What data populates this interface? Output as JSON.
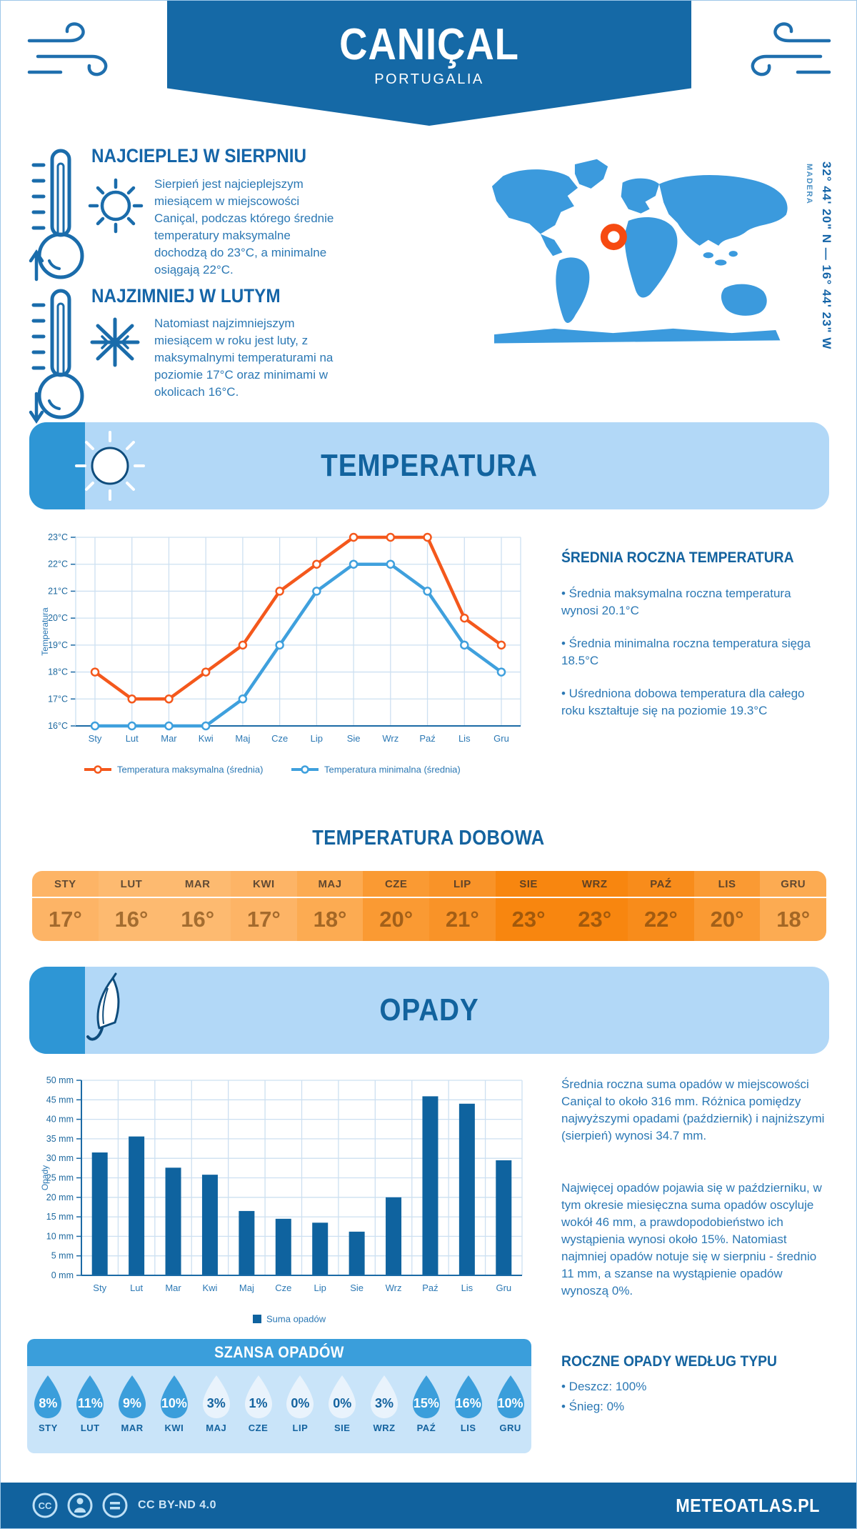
{
  "header": {
    "title": "CANIÇAL",
    "subtitle": "PORTUGALIA"
  },
  "location": {
    "coordinates": "32° 44' 20\" N — 16° 44' 23\" W",
    "region": "MADERA",
    "map_color": "#3b9add",
    "marker_color": "#f64a11"
  },
  "highlights": [
    {
      "title": "NAJCIEPLEJ W SIERPNIU",
      "text": "Sierpień jest najcieplejszym miesiącem w miejscowości Caniçal, podczas którego średnie temperatury maksymalne dochodzą do 23°C, a minimalne osiągają 22°C."
    },
    {
      "title": "NAJZIMNIEJ W LUTYM",
      "text": "Natomiast najzimniejszym miesiącem w roku jest luty, z maksymalnymi temperaturami na poziomie 17°C oraz minimami w okolicach 16°C."
    }
  ],
  "temperature_section": {
    "banner": "TEMPERATURA",
    "stats_heading": "ŚREDNIA ROCZNA TEMPERATURA",
    "stats": [
      "• Średnia maksymalna roczna temperatura wynosi 20.1°C",
      "• Średnia minimalna roczna temperatura sięga 18.5°C",
      "• Uśredniona dobowa temperatura dla całego roku kształtuje się na poziomie 19.3°C"
    ],
    "daily_heading": "TEMPERATURA DOBOWA"
  },
  "chart_data": [
    {
      "type": "line",
      "categories": [
        "Sty",
        "Lut",
        "Mar",
        "Kwi",
        "Maj",
        "Cze",
        "Lip",
        "Sie",
        "Wrz",
        "Paź",
        "Lis",
        "Gru"
      ],
      "series": [
        {
          "name": "Temperatura maksymalna (średnia)",
          "color": "#f4581c",
          "values": [
            18,
            17,
            17,
            18,
            19,
            21,
            22,
            23,
            23,
            23,
            20,
            19
          ]
        },
        {
          "name": "Temperatura minimalna (średnia)",
          "color": "#3fa0dd",
          "values": [
            16,
            16,
            16,
            16,
            17,
            19,
            21,
            22,
            22,
            21,
            19,
            18
          ]
        }
      ],
      "ylabel": "Temperatura",
      "ylim": [
        16,
        23
      ],
      "ytick_step": 1,
      "ytick_suffix": "°C",
      "grid": true,
      "legend_position": "bottom"
    },
    {
      "type": "bar",
      "categories": [
        "Sty",
        "Lut",
        "Mar",
        "Kwi",
        "Maj",
        "Cze",
        "Lip",
        "Sie",
        "Wrz",
        "Paź",
        "Lis",
        "Gru"
      ],
      "values": [
        31.5,
        35.6,
        27.6,
        25.8,
        16.5,
        14.5,
        13.5,
        11.2,
        20,
        45.9,
        44,
        29.5
      ],
      "bar_color": "#0f639f",
      "ylabel": "Opady",
      "ylim": [
        0,
        50
      ],
      "ytick_step": 5,
      "ytick_suffix": " mm",
      "legend": "Suma opadów",
      "grid": true,
      "legend_position": "bottom"
    }
  ],
  "daily_table": {
    "months": [
      "STY",
      "LUT",
      "MAR",
      "KWI",
      "MAJ",
      "CZE",
      "LIP",
      "SIE",
      "WRZ",
      "PAŹ",
      "LIS",
      "GRU"
    ],
    "values": [
      "17°",
      "16°",
      "16°",
      "17°",
      "18°",
      "20°",
      "21°",
      "23°",
      "23°",
      "22°",
      "20°",
      "18°"
    ],
    "cell_colors": [
      "#fdb466",
      "#fdba70",
      "#fdba70",
      "#fdb466",
      "#fcab52",
      "#fa9a33",
      "#f99328",
      "#f8860f",
      "#f8860f",
      "#f88c1b",
      "#fa9a33",
      "#fcab52"
    ]
  },
  "precipitation_section": {
    "banner": "OPADY",
    "paragraphs": [
      "Średnia roczna suma opadów w miejscowości Caniçal to około 316 mm. Różnica pomiędzy najwyższymi opadami (październik) i najniższymi (sierpień) wynosi 34.7 mm.",
      "Najwięcej opadów pojawia się w październiku, w tym okresie miesięczna suma opadów oscyluje wokół 46 mm, a prawdopodobieństwo ich wystąpienia wynosi około 15%. Natomiast najmniej opadów notuje się w sierpniu - średnio 11 mm, a szanse na wystąpienie opadów wynoszą 0%."
    ],
    "type_heading": "ROCZNE OPADY WEDŁUG TYPU",
    "type_bullets": [
      "• Deszcz: 100%",
      "• Śnieg: 0%"
    ]
  },
  "chance_section": {
    "heading": "SZANSA OPADÓW",
    "months": [
      "STY",
      "LUT",
      "MAR",
      "KWI",
      "MAJ",
      "CZE",
      "LIP",
      "SIE",
      "WRZ",
      "PAŹ",
      "LIS",
      "GRU"
    ],
    "values": [
      "8%",
      "11%",
      "9%",
      "10%",
      "3%",
      "1%",
      "0%",
      "0%",
      "3%",
      "15%",
      "16%",
      "10%"
    ],
    "emphasis": [
      true,
      true,
      true,
      true,
      false,
      false,
      false,
      false,
      false,
      true,
      true,
      true
    ],
    "drop_dark": "#3b9edb",
    "drop_light": "#e9f3fc"
  },
  "footer": {
    "license": "CC BY-ND 4.0",
    "site": "METEOATLAS.PL"
  }
}
